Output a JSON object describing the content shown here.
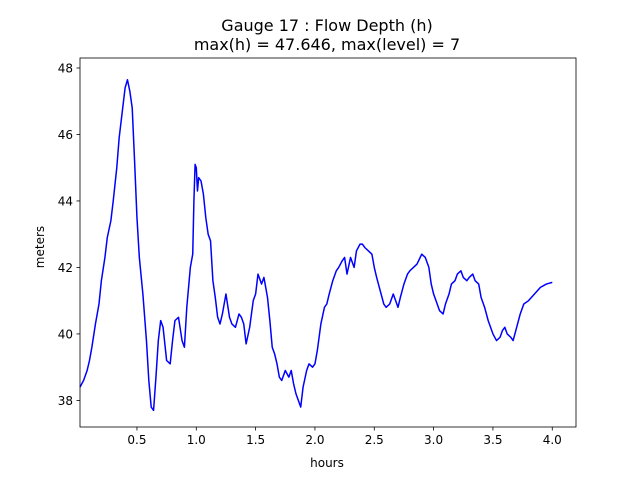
{
  "chart_data": {
    "type": "line",
    "title_line1": "Gauge 17 : Flow Depth (h)",
    "title_line2": "max(h) =  47.646,    max(level) = 7",
    "xlabel": "hours",
    "ylabel": "meters",
    "xlim": [
      0.02,
      4.2
    ],
    "ylim": [
      37.2,
      48.3
    ],
    "xticks": [
      0.5,
      1.0,
      1.5,
      2.0,
      2.5,
      3.0,
      3.5,
      4.0
    ],
    "xtick_labels": [
      "0.5",
      "1.0",
      "1.5",
      "2.0",
      "2.5",
      "3.0",
      "3.5",
      "4.0"
    ],
    "yticks": [
      38,
      40,
      42,
      44,
      46,
      48
    ],
    "ytick_labels": [
      "38",
      "40",
      "42",
      "44",
      "46",
      "48"
    ],
    "grid": false,
    "series": [
      {
        "name": "h",
        "color": "#0000ff",
        "x": [
          0.02,
          0.05,
          0.08,
          0.1,
          0.12,
          0.15,
          0.18,
          0.2,
          0.23,
          0.25,
          0.28,
          0.3,
          0.33,
          0.35,
          0.38,
          0.4,
          0.42,
          0.44,
          0.46,
          0.48,
          0.5,
          0.52,
          0.55,
          0.58,
          0.6,
          0.62,
          0.64,
          0.66,
          0.68,
          0.7,
          0.72,
          0.75,
          0.78,
          0.8,
          0.82,
          0.85,
          0.88,
          0.9,
          0.92,
          0.95,
          0.97,
          0.98,
          0.99,
          1.0,
          1.01,
          1.02,
          1.04,
          1.06,
          1.08,
          1.1,
          1.12,
          1.14,
          1.16,
          1.18,
          1.2,
          1.22,
          1.25,
          1.28,
          1.3,
          1.33,
          1.36,
          1.38,
          1.4,
          1.42,
          1.45,
          1.48,
          1.5,
          1.52,
          1.55,
          1.57,
          1.58,
          1.6,
          1.62,
          1.64,
          1.66,
          1.68,
          1.7,
          1.72,
          1.75,
          1.78,
          1.8,
          1.82,
          1.84,
          1.86,
          1.88,
          1.9,
          1.93,
          1.95,
          1.98,
          2.0,
          2.02,
          2.05,
          2.08,
          2.1,
          2.12,
          2.15,
          2.18,
          2.2,
          2.23,
          2.25,
          2.27,
          2.3,
          2.33,
          2.35,
          2.38,
          2.4,
          2.42,
          2.45,
          2.48,
          2.5,
          2.52,
          2.55,
          2.58,
          2.6,
          2.63,
          2.66,
          2.68,
          2.7,
          2.72,
          2.75,
          2.78,
          2.8,
          2.83,
          2.86,
          2.9,
          2.93,
          2.96,
          2.98,
          3.0,
          3.02,
          3.05,
          3.08,
          3.1,
          3.13,
          3.15,
          3.18,
          3.2,
          3.23,
          3.25,
          3.28,
          3.3,
          3.33,
          3.35,
          3.38,
          3.4,
          3.43,
          3.46,
          3.5,
          3.53,
          3.56,
          3.58,
          3.6,
          3.62,
          3.65,
          3.67,
          3.7,
          3.73,
          3.76,
          3.8,
          3.85,
          3.9,
          3.95,
          4.0
        ],
        "y": [
          38.4,
          38.6,
          38.9,
          39.2,
          39.6,
          40.3,
          40.9,
          41.6,
          42.3,
          42.9,
          43.4,
          44.0,
          45.0,
          45.9,
          46.8,
          47.4,
          47.646,
          47.3,
          46.8,
          45.2,
          43.5,
          42.3,
          41.2,
          39.8,
          38.6,
          37.8,
          37.7,
          38.7,
          39.8,
          40.4,
          40.2,
          39.2,
          39.1,
          39.8,
          40.4,
          40.5,
          39.8,
          39.6,
          40.8,
          42.0,
          42.4,
          44.0,
          45.1,
          45.0,
          44.3,
          44.7,
          44.6,
          44.2,
          43.5,
          43.0,
          42.8,
          41.6,
          41.1,
          40.5,
          40.3,
          40.6,
          41.2,
          40.5,
          40.3,
          40.2,
          40.6,
          40.5,
          40.3,
          39.7,
          40.2,
          41.0,
          41.2,
          41.8,
          41.5,
          41.7,
          41.5,
          41.1,
          40.4,
          39.6,
          39.4,
          39.1,
          38.7,
          38.6,
          38.9,
          38.7,
          38.9,
          38.5,
          38.2,
          38.0,
          37.8,
          38.4,
          38.9,
          39.1,
          39.0,
          39.1,
          39.5,
          40.3,
          40.8,
          40.9,
          41.2,
          41.6,
          41.9,
          42.0,
          42.2,
          42.3,
          41.8,
          42.3,
          42.0,
          42.5,
          42.7,
          42.7,
          42.6,
          42.5,
          42.4,
          42.0,
          41.7,
          41.3,
          40.9,
          40.8,
          40.9,
          41.2,
          41.0,
          40.8,
          41.1,
          41.5,
          41.8,
          41.9,
          42.0,
          42.1,
          42.4,
          42.3,
          42.0,
          41.5,
          41.2,
          41.0,
          40.7,
          40.6,
          40.9,
          41.2,
          41.5,
          41.6,
          41.8,
          41.9,
          41.7,
          41.6,
          41.7,
          41.8,
          41.6,
          41.5,
          41.1,
          40.8,
          40.4,
          40.0,
          39.8,
          39.9,
          40.1,
          40.2,
          40.0,
          39.9,
          39.8,
          40.2,
          40.6,
          40.9,
          41.0,
          41.2,
          41.4,
          41.5,
          41.55
        ]
      }
    ]
  }
}
